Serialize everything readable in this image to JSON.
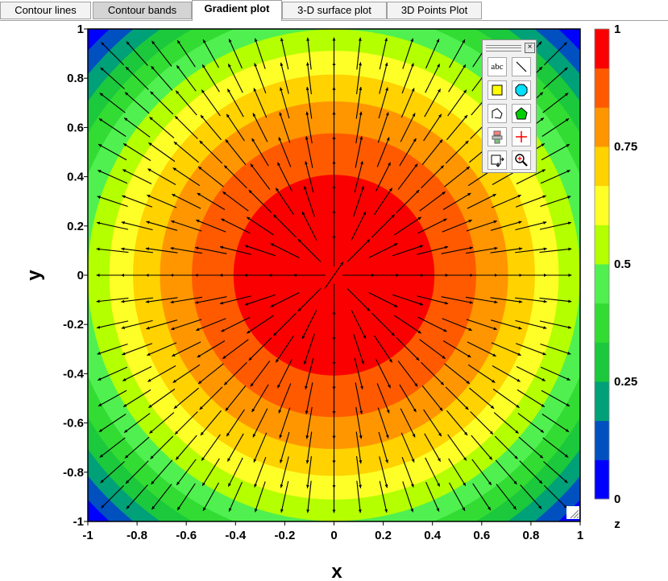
{
  "tabs": [
    "Contour lines",
    "Contour bands",
    "Gradient plot",
    "3-D surface plot",
    "3D Points Plot"
  ],
  "active_tab": "Gradient plot",
  "toolbox": {
    "close_glyph": "×",
    "text_tool_label": "abc",
    "tools": [
      "text-tool-icon",
      "line-tool-icon",
      "rectangle-tool-icon",
      "ellipse-tool-icon",
      "polyline-tool-icon",
      "polygon-tool-icon",
      "fill-tool-icon",
      "crosshair-tool-icon",
      "copy-tool-icon",
      "zoom-tool-icon"
    ]
  },
  "chart_data": {
    "type": "heatmap",
    "subtype": "gradient plot (filled contours with gradient vector arrows)",
    "function": "z = 1 - (x^2 + y^2)/2",
    "xlabel": "x",
    "ylabel": "y",
    "xlim": [
      -1,
      1
    ],
    "ylim": [
      -1,
      1
    ],
    "xticks": [
      -1,
      -0.8,
      -0.6,
      -0.4,
      -0.2,
      0,
      0.2,
      0.4,
      0.6,
      0.8,
      1
    ],
    "yticks": [
      -1,
      -0.8,
      -0.6,
      -0.4,
      -0.2,
      0,
      0.2,
      0.4,
      0.6,
      0.8,
      1
    ],
    "xtick_labels": [
      "-1",
      "-0.8",
      "-0.6",
      "-0.4",
      "-0.2",
      "0",
      "0.2",
      "0.4",
      "0.6",
      "0.8",
      "1"
    ],
    "ytick_labels": [
      "-1",
      "-0.8",
      "-0.6",
      "-0.4",
      "-0.2",
      "0",
      "0.2",
      "0.4",
      "0.6",
      "0.8",
      "1"
    ],
    "levels": [
      0,
      0.0833,
      0.1667,
      0.25,
      0.3333,
      0.4167,
      0.5,
      0.5833,
      0.6667,
      0.75,
      0.8333,
      0.9167,
      1
    ],
    "band_colors": [
      "#0000ff",
      "#0050c0",
      "#00a078",
      "#1cc83c",
      "#32dc32",
      "#50f050",
      "#b4ff00",
      "#ffff28",
      "#ffd200",
      "#ff9600",
      "#ff5a00",
      "#fa0000"
    ],
    "colorbar": {
      "title": "z",
      "tick_values": [
        0,
        0.25,
        0.5,
        0.75,
        1
      ],
      "tick_labels": [
        "0",
        "0.25",
        "0.5",
        "0.75",
        "1"
      ]
    },
    "vector_grid": {
      "x": [
        -0.9,
        -0.8,
        -0.7,
        -0.6,
        -0.5,
        -0.4,
        -0.3,
        -0.2,
        -0.1,
        0,
        0.1,
        0.2,
        0.3,
        0.4,
        0.5,
        0.6,
        0.7,
        0.8,
        0.9
      ],
      "y": [
        -0.9,
        -0.8,
        -0.7,
        -0.6,
        -0.5,
        -0.4,
        -0.3,
        -0.2,
        -0.1,
        0,
        0.1,
        0.2,
        0.3,
        0.4,
        0.5,
        0.6,
        0.7,
        0.8,
        0.9
      ],
      "direction": "outward from origin (radial)"
    },
    "grid": false,
    "legend": "colorbar right"
  }
}
